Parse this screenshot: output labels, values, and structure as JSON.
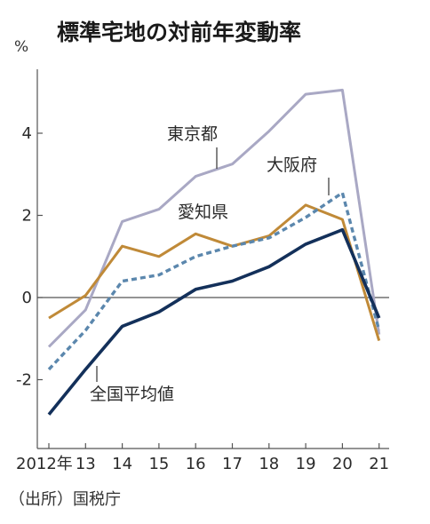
{
  "chart_data": {
    "type": "line",
    "title": "標準宅地の対前年変動率",
    "unit": "%",
    "source": "（出所）国税庁",
    "x": [
      "2012年",
      "13",
      "14",
      "15",
      "16",
      "17",
      "18",
      "19",
      "20",
      "21"
    ],
    "ylim": [
      -3.5,
      5.5
    ],
    "yticks": [
      "4",
      "2",
      "0",
      "-2"
    ],
    "grid": false,
    "series": [
      {
        "name": "東京都",
        "color": "#a9a8c4",
        "dash": "",
        "values": [
          -1.2,
          -0.3,
          1.85,
          2.15,
          2.95,
          3.25,
          4.05,
          4.95,
          5.05,
          -0.9
        ]
      },
      {
        "name": "愛知県",
        "color": "#c08a38",
        "dash": "",
        "values": [
          -0.5,
          0.05,
          1.25,
          1.0,
          1.55,
          1.25,
          1.5,
          2.25,
          1.9,
          -1.05
        ]
      },
      {
        "name": "大阪府",
        "color": "#5b87ad",
        "dash": "6,4",
        "values": [
          -1.75,
          -0.8,
          0.4,
          0.55,
          1.0,
          1.25,
          1.45,
          1.95,
          2.55,
          -0.8
        ]
      },
      {
        "name": "全国平均値",
        "color": "#13305a",
        "dash": "",
        "values": [
          -2.85,
          -1.75,
          -0.7,
          -0.35,
          0.2,
          0.4,
          0.75,
          1.3,
          1.65,
          -0.5
        ]
      }
    ]
  }
}
